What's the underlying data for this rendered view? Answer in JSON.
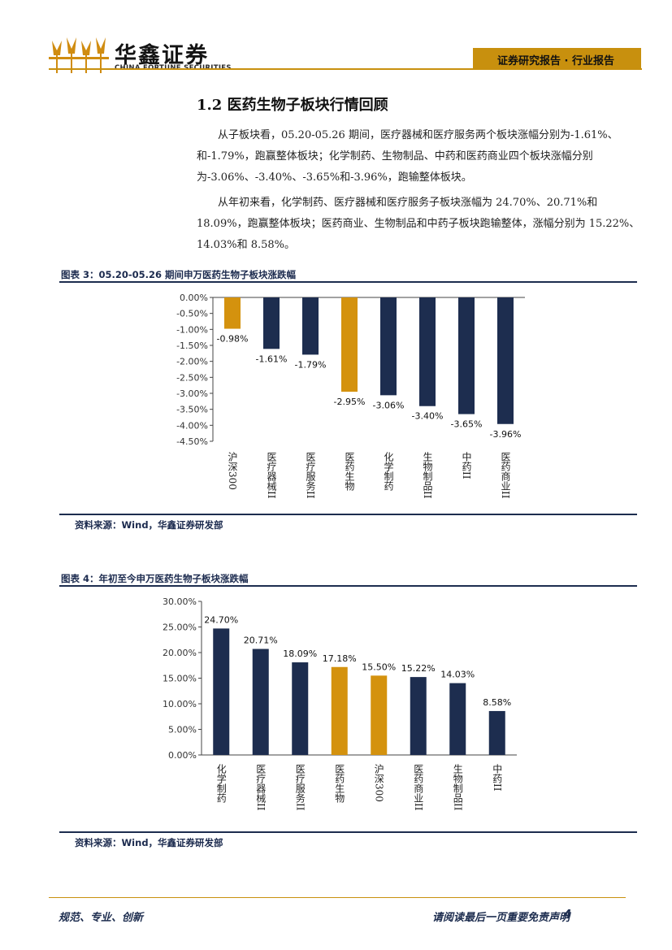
{
  "header": {
    "logo_cn": "华鑫证券",
    "logo_en": "CHINA FORTUNE SECURITIES",
    "tag": "证券研究报告 · 行业报告",
    "accent_color": "#c8900e",
    "navy_color": "#1d2d4f"
  },
  "section": {
    "title": "1.2 医药生物子板块行情回顾",
    "para1": "从子板块看，05.20-05.26 期间，医疗器械和医疗服务两个板块涨幅分别为-1.61%、和-1.79%，跑赢整体板块；化学制药、生物制品、中药和医药商业四个板块涨幅分别为-3.06%、-3.40%、-3.65%和-3.96%，跑输整体板块。",
    "para2": "从年初来看，化学制药、医疗器械和医疗服务子板块涨幅为 24.70%、20.71%和 18.09%，跑赢整体板块；医药商业、生物制品和中药子板块跑输整体，涨幅分别为 15.22%、14.03%和 8.58%。"
  },
  "figure3": {
    "title": "图表 3：05.20-05.26 期间申万医药生物子板块涨跌幅",
    "source": "资料来源：Wind，华鑫证券研发部"
  },
  "figure4": {
    "title": "图表 4：年初至今申万医药生物子板块涨跌幅",
    "source": "资料来源：Wind，华鑫证券研发部"
  },
  "chart_data": [
    {
      "type": "bar",
      "title": "图表 3：05.20-05.26 期间申万医药生物子板块涨跌幅",
      "categories": [
        "沪深300",
        "医疗器械II",
        "医疗服务II",
        "医药生物",
        "化学制药",
        "生物制品II",
        "中药II",
        "医药商业II"
      ],
      "values": [
        -0.98,
        -1.61,
        -1.79,
        -2.95,
        -3.06,
        -3.4,
        -3.65,
        -3.96
      ],
      "data_labels": [
        "-0.98%",
        "-1.61%",
        "-1.79%",
        "-2.95%",
        "-3.06%",
        "-3.40%",
        "-3.65%",
        "-3.96%"
      ],
      "highlight": [
        true,
        false,
        false,
        true,
        false,
        false,
        false,
        false
      ],
      "ylim": [
        -4.5,
        0
      ],
      "yticks": [
        0,
        -0.5,
        -1,
        -1.5,
        -2,
        -2.5,
        -3,
        -3.5,
        -4,
        -4.5
      ],
      "ytick_labels": [
        "0.00%",
        "-0.50%",
        "-1.00%",
        "-1.50%",
        "-2.00%",
        "-2.50%",
        "-3.00%",
        "-3.50%",
        "-4.00%",
        "-4.50%"
      ],
      "xlabel": "",
      "ylabel": "",
      "grid": false,
      "legend": "none",
      "colors": {
        "bar": "#1d2d4f",
        "highlight": "#d4920e"
      }
    },
    {
      "type": "bar",
      "title": "图表 4：年初至今申万医药生物子板块涨跌幅",
      "categories": [
        "化学制药",
        "医疗器械II",
        "医疗服务II",
        "医药生物",
        "沪深300",
        "医药商业II",
        "生物制品II",
        "中药II"
      ],
      "values": [
        24.7,
        20.71,
        18.09,
        17.18,
        15.5,
        15.22,
        14.03,
        8.58
      ],
      "data_labels": [
        "24.70%",
        "20.71%",
        "18.09%",
        "17.18%",
        "15.50%",
        "15.22%",
        "14.03%",
        "8.58%"
      ],
      "highlight": [
        false,
        false,
        false,
        true,
        true,
        false,
        false,
        false
      ],
      "ylim": [
        0,
        30
      ],
      "yticks": [
        0,
        5,
        10,
        15,
        20,
        25,
        30
      ],
      "ytick_labels": [
        "0.00%",
        "5.00%",
        "10.00%",
        "15.00%",
        "20.00%",
        "25.00%",
        "30.00%"
      ],
      "xlabel": "",
      "ylabel": "",
      "grid": false,
      "legend": "none",
      "colors": {
        "bar": "#1d2d4f",
        "highlight": "#d4920e"
      }
    }
  ],
  "footer": {
    "left": "规范、专业、创新",
    "right": "请阅读最后一页重要免责声明",
    "page": "4"
  }
}
